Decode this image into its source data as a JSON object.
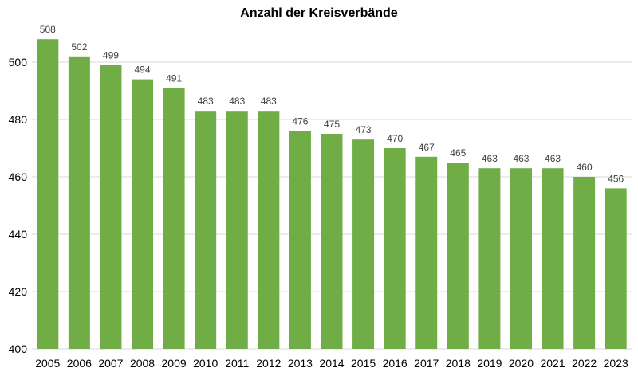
{
  "chart_data": {
    "type": "bar",
    "title": "Anzahl der Kreisverbände",
    "categories": [
      "2005",
      "2006",
      "2007",
      "2008",
      "2009",
      "2010",
      "2011",
      "2012",
      "2013",
      "2014",
      "2015",
      "2016",
      "2017",
      "2018",
      "2019",
      "2020",
      "2021",
      "2022",
      "2023"
    ],
    "values": [
      508,
      502,
      499,
      494,
      491,
      483,
      483,
      483,
      476,
      475,
      473,
      470,
      467,
      465,
      463,
      463,
      463,
      460,
      456
    ],
    "xlabel": "",
    "ylabel": "",
    "ylim": [
      400,
      510
    ],
    "yticks": [
      400,
      420,
      440,
      460,
      480,
      500
    ],
    "grid": true,
    "data_labels": true,
    "bar_color": "#70AD47"
  }
}
